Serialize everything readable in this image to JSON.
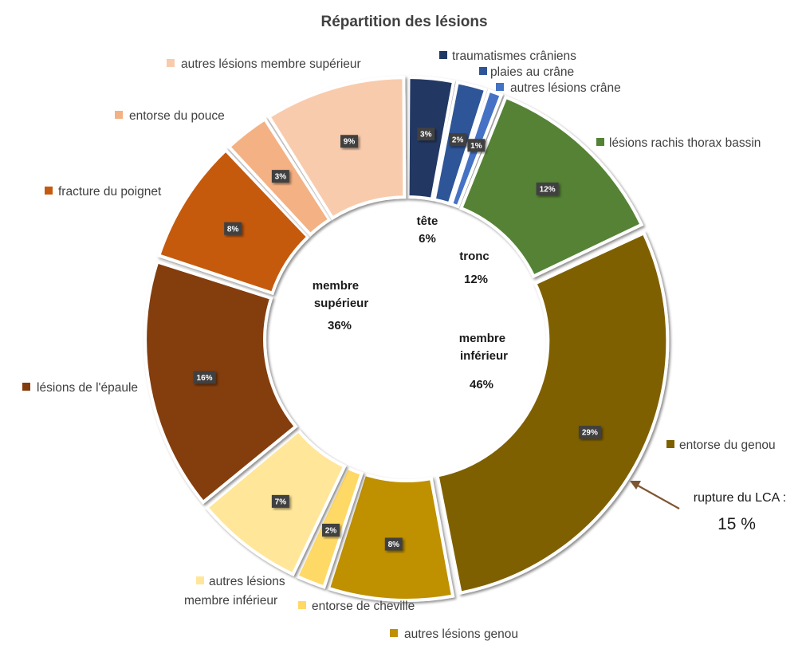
{
  "chart_data": {
    "type": "pie",
    "variant": "donut",
    "title": "Répartition des lésions",
    "slices": [
      {
        "label": "traumatismes crâniens",
        "value": 3,
        "pct_label": "3%",
        "color": "#203864",
        "group": "tête"
      },
      {
        "label": "plaies au crâne",
        "value": 2,
        "pct_label": "2%",
        "color": "#2F5597",
        "group": "tête"
      },
      {
        "label": "autres lésions crâne",
        "value": 1,
        "pct_label": "1%",
        "color": "#4472C4",
        "group": "tête"
      },
      {
        "label": "lésions rachis thorax bassin",
        "value": 12,
        "pct_label": "12%",
        "color": "#548235",
        "group": "tronc"
      },
      {
        "label": "entorse du genou",
        "value": 29,
        "pct_label": "29%",
        "color": "#7F6000",
        "group": "membre inférieur"
      },
      {
        "label": "autres lésions genou",
        "value": 8,
        "pct_label": "8%",
        "color": "#BF9000",
        "group": "membre inférieur"
      },
      {
        "label": "entorse de cheville",
        "value": 2,
        "pct_label": "2%",
        "color": "#FFD966",
        "group": "membre inférieur"
      },
      {
        "label": "autres lésions membre inférieur",
        "value": 7,
        "pct_label": "7%",
        "color": "#FFE699",
        "group": "membre inférieur"
      },
      {
        "label": "lésions de l'épaule",
        "value": 16,
        "pct_label": "16%",
        "color": "#843C0C",
        "group": "membre supérieur"
      },
      {
        "label": "fracture du poignet",
        "value": 8,
        "pct_label": "8%",
        "color": "#C55A11",
        "group": "membre supérieur"
      },
      {
        "label": "entorse du pouce",
        "value": 3,
        "pct_label": "3%",
        "color": "#F4B183",
        "group": "membre supérieur"
      },
      {
        "label": "autres lésions membre supérieur",
        "value": 9,
        "pct_label": "9%",
        "color": "#F8CBAD",
        "group": "membre supérieur"
      }
    ],
    "groups": [
      {
        "name": "tête",
        "pct_label": "6%"
      },
      {
        "name": "tronc",
        "pct_label": "12%"
      },
      {
        "name": "membre inférieur",
        "pct_label": "46%"
      },
      {
        "name": "membre supérieur",
        "pct_label": "36%"
      }
    ],
    "annotation": {
      "label": "rupture du LCA :",
      "value": "15 %"
    }
  }
}
